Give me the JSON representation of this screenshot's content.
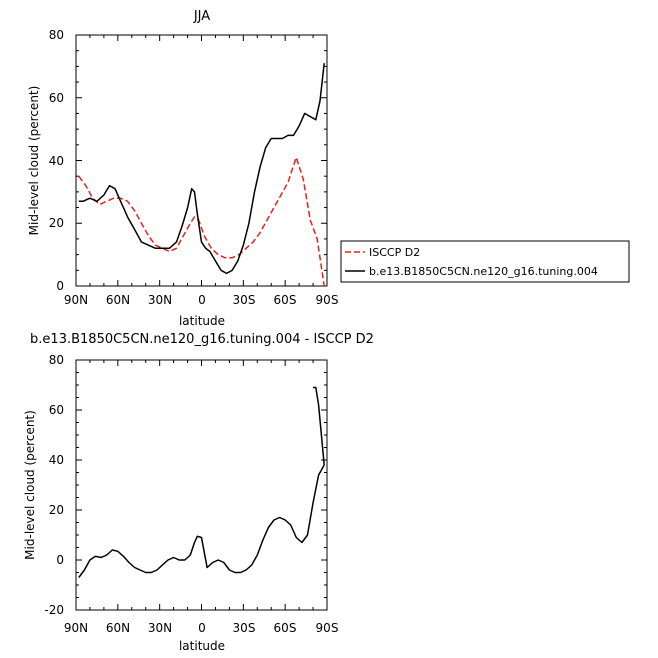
{
  "chart_data": [
    {
      "type": "line",
      "title": "JJA",
      "xlabel": "latitude",
      "ylabel": "Mid-level cloud (percent)",
      "xlim": [
        90,
        -90
      ],
      "ylim": [
        0,
        80
      ],
      "xticks": [
        "90N",
        "60N",
        "30N",
        "0",
        "30S",
        "60S",
        "90S"
      ],
      "yticks": [
        "0",
        "20",
        "40",
        "60",
        "80"
      ],
      "legend_position": "right",
      "series": [
        {
          "name": "ISCCP D2",
          "color": "#e8201b",
          "dash": "dashed",
          "x": [
            88,
            83,
            78,
            73,
            68,
            63,
            58,
            53,
            48,
            43,
            38,
            33,
            28,
            23,
            18,
            13,
            8,
            5,
            2,
            -2,
            -7,
            -12,
            -17,
            -22,
            -27,
            -32,
            -37,
            -42,
            -47,
            -52,
            -57,
            -62,
            -65,
            -68,
            -73,
            -78,
            -83,
            -88
          ],
          "y": [
            35,
            32,
            28,
            26,
            27,
            28,
            28,
            27,
            24,
            20,
            16,
            13,
            12,
            11,
            12,
            16,
            20,
            22,
            21,
            16,
            12,
            10,
            9,
            9,
            10,
            12,
            14,
            17,
            21,
            25,
            29,
            33,
            37,
            41,
            34,
            21,
            15,
            0
          ]
        },
        {
          "name": "b.e13.B1850C5CN.ne120_g16.tuning.004",
          "color": "#000000",
          "dash": "solid",
          "x": [
            88,
            85,
            80,
            75,
            70,
            66,
            62,
            58,
            53,
            48,
            43,
            38,
            33,
            28,
            23,
            18,
            14,
            10,
            7,
            5,
            3,
            0,
            -3,
            -6,
            -10,
            -14,
            -18,
            -22,
            -26,
            -30,
            -34,
            -38,
            -42,
            -46,
            -50,
            -54,
            -58,
            -62,
            -66,
            -70,
            -74,
            -78,
            -82,
            -85,
            -88
          ],
          "y": [
            27,
            27,
            28,
            27,
            29,
            32,
            31,
            27,
            22,
            18,
            14,
            13,
            12,
            12,
            12,
            14,
            19,
            25,
            31,
            30,
            23,
            14,
            12,
            11,
            8,
            5,
            4,
            5,
            8,
            13,
            20,
            30,
            38,
            44,
            47,
            47,
            47,
            48,
            48,
            51,
            55,
            54,
            53,
            59,
            71
          ]
        }
      ]
    },
    {
      "type": "line",
      "title": "b.e13.B1850C5CN.ne120_g16.tuning.004 - ISCCP D2",
      "xlabel": "latitude",
      "ylabel": "Mid-level cloud (percent)",
      "xlim": [
        90,
        -90
      ],
      "ylim": [
        -20,
        80
      ],
      "xticks": [
        "90N",
        "60N",
        "30N",
        "0",
        "30S",
        "60S",
        "90S"
      ],
      "yticks": [
        "-20",
        "0",
        "20",
        "40",
        "60",
        "80"
      ],
      "series": [
        {
          "color": "#000000",
          "dash": "solid",
          "x": [
            88,
            84,
            80,
            76,
            72,
            68,
            64,
            60,
            56,
            52,
            48,
            44,
            40,
            36,
            32,
            28,
            24,
            20,
            16,
            12,
            10,
            8,
            5,
            3,
            0,
            -4,
            -8,
            -12,
            -16,
            -20,
            -24,
            -28,
            -32,
            -36,
            -40,
            -44,
            -48,
            -52,
            -56,
            -60,
            -64,
            -68,
            -72,
            -76,
            -80,
            -84,
            -88
          ],
          "y": [
            -7,
            -4,
            0,
            1.5,
            1,
            2,
            4,
            3.5,
            1.5,
            -1,
            -3,
            -4,
            -5,
            -5,
            -4,
            -2,
            0,
            1,
            0,
            0,
            1,
            2,
            7,
            9.5,
            9,
            -3,
            -1,
            0,
            -1,
            -4,
            -5,
            -5,
            -4,
            -2,
            2,
            8,
            13,
            16,
            17,
            16,
            14,
            9,
            7,
            10,
            23,
            34,
            38
          ]
        },
        {
          "color": "#000000",
          "dash": "solid",
          "x": [
            -88,
            -86,
            -84,
            -82,
            -80
          ],
          "y": [
            38,
            50,
            62,
            69,
            69
          ]
        }
      ]
    }
  ]
}
